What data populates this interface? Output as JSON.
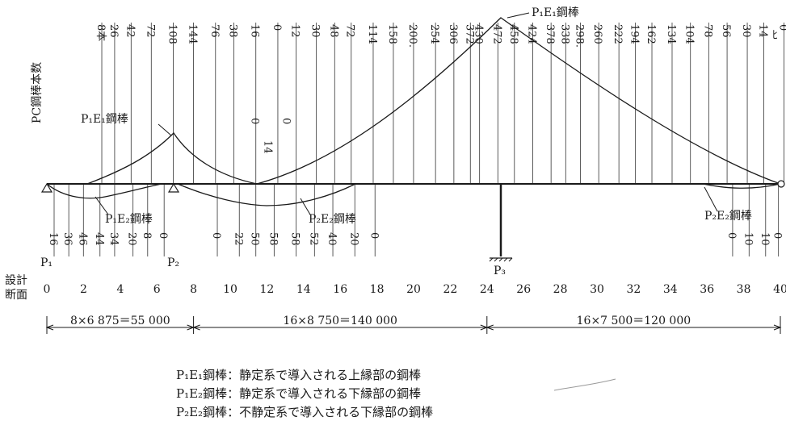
{
  "y_axis_label": "PC鋼棒本数",
  "section_axis_label": [
    "設計",
    "断面"
  ],
  "support_labels": [
    "P₁",
    "P₂",
    "P₃"
  ],
  "right_end_label": "ﾋ",
  "sections": [
    "0",
    "2",
    "4",
    "6",
    "8",
    "10",
    "12",
    "14",
    "16",
    "18",
    "20",
    "22",
    "24",
    "26",
    "28",
    "30",
    "32",
    "34",
    "36",
    "38",
    "40"
  ],
  "upper_counts": [
    {
      "sec": 2.6,
      "v": "8本"
    },
    {
      "sec": 3.3,
      "v": "26"
    },
    {
      "sec": 4.2,
      "v": "42"
    },
    {
      "sec": 5.3,
      "v": "72"
    },
    {
      "sec": 6.5,
      "v": "108"
    },
    {
      "sec": 7.6,
      "v": "144"
    },
    {
      "sec": 8.8,
      "v": "76"
    },
    {
      "sec": 9.8,
      "v": "38"
    },
    {
      "sec": 11.0,
      "v": "16"
    },
    {
      "sec": 12.2,
      "v": "0"
    },
    {
      "sec": 13.2,
      "v": "12"
    },
    {
      "sec": 14.3,
      "v": "30"
    },
    {
      "sec": 15.3,
      "v": "48"
    },
    {
      "sec": 16.2,
      "v": "72"
    },
    {
      "sec": 17.4,
      "v": "114"
    },
    {
      "sec": 18.5,
      "v": "158"
    },
    {
      "sec": 19.6,
      "v": "200."
    },
    {
      "sec": 20.8,
      "v": "254"
    },
    {
      "sec": 21.8,
      "v": "306"
    },
    {
      "sec": 22.7,
      "v": "372"
    },
    {
      "sec": 23.2,
      "v": "430"
    },
    {
      "sec": 24.2,
      "v": "472"
    },
    {
      "sec": 25.1,
      "v": "458"
    },
    {
      "sec": 26.1,
      "v": "424"
    },
    {
      "sec": 27.1,
      "v": "378"
    },
    {
      "sec": 27.9,
      "v": "338"
    },
    {
      "sec": 28.7,
      "v": "298."
    },
    {
      "sec": 29.7,
      "v": "260"
    },
    {
      "sec": 30.8,
      "v": "222"
    },
    {
      "sec": 31.7,
      "v": "194"
    },
    {
      "sec": 32.6,
      "v": "162"
    },
    {
      "sec": 33.7,
      "v": "134"
    },
    {
      "sec": 34.7,
      "v": "104"
    },
    {
      "sec": 35.7,
      "v": "78"
    },
    {
      "sec": 36.7,
      "v": "56"
    },
    {
      "sec": 37.8,
      "v": "30"
    },
    {
      "sec": 38.7,
      "v": "14"
    },
    {
      "sec": 39.8,
      "v": "0"
    }
  ],
  "mid_counts": [
    {
      "sec": 11.0,
      "v": "0",
      "y": 158
    },
    {
      "sec": 11.7,
      "v": "14",
      "y": 186
    },
    {
      "sec": 12.7,
      "v": "0",
      "y": 158
    }
  ],
  "lower_counts": [
    {
      "sec": 0.0,
      "v": "16"
    },
    {
      "sec": 0.8,
      "v": "36"
    },
    {
      "sec": 1.6,
      "v": "46"
    },
    {
      "sec": 2.5,
      "v": "44"
    },
    {
      "sec": 3.3,
      "v": "34"
    },
    {
      "sec": 4.3,
      "v": "20"
    },
    {
      "sec": 5.1,
      "v": "8"
    },
    {
      "sec": 6.0,
      "v": "0"
    },
    {
      "sec": 8.9,
      "v": "0"
    },
    {
      "sec": 10.1,
      "v": "22"
    },
    {
      "sec": 11.0,
      "v": "50"
    },
    {
      "sec": 12.0,
      "v": "58"
    },
    {
      "sec": 13.2,
      "v": "58"
    },
    {
      "sec": 14.2,
      "v": "52"
    },
    {
      "sec": 15.2,
      "v": "40"
    },
    {
      "sec": 16.4,
      "v": "20"
    },
    {
      "sec": 17.5,
      "v": "0"
    },
    {
      "sec": 37.0,
      "v": "0"
    },
    {
      "sec": 37.9,
      "v": "10"
    },
    {
      "sec": 38.8,
      "v": "10"
    },
    {
      "sec": 39.5,
      "v": "0"
    }
  ],
  "curve_labels": {
    "p1e1_top": "P₁E₁鋼棒",
    "p1e1_left": "P₁E₁鋼棒",
    "p1e2": "P₁E₂鋼棒",
    "p2e2_mid": "P₂E₂鋼棒",
    "p2e2_right": "P₂E₂鋼棒"
  },
  "dimensions": [
    {
      "from": 0,
      "to": 8,
      "text": "8×6 875＝55 000"
    },
    {
      "from": 8,
      "to": 24,
      "text": "16×8 750＝140 000"
    },
    {
      "from": 24,
      "to": 40,
      "text": "16×7 500＝120 000"
    }
  ],
  "legend": [
    "P₁E₁鋼棒：静定系で導入される上縁部の鋼棒",
    "P₁E₂鋼棒：静定系で導入される下縁部の鋼棒",
    "P₂E₂鋼棒：不静定系で導入される下縁部の鋼棒"
  ],
  "colors": {
    "ink": "#1a1a1a",
    "grid": "#4a4a4a"
  }
}
